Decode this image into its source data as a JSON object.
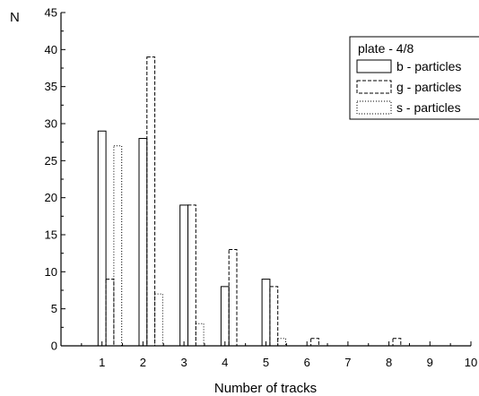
{
  "chart_data": {
    "type": "bar",
    "xlabel": "Number of tracks",
    "ylabel": "N",
    "xlim": [
      0,
      10
    ],
    "ylim": [
      0,
      45
    ],
    "x_ticks": [
      1,
      2,
      3,
      4,
      5,
      6,
      7,
      8,
      9,
      10
    ],
    "y_ticks": [
      0,
      5,
      10,
      15,
      20,
      25,
      30,
      35,
      40,
      45
    ],
    "grid": false,
    "legend": {
      "title": "plate - 4/8",
      "placement": "top-right"
    },
    "series": [
      {
        "name": "b - particles",
        "style": "solid",
        "color": "#000000",
        "points": [
          {
            "x": 1,
            "y": 29
          },
          {
            "x": 2,
            "y": 28
          },
          {
            "x": 3,
            "y": 19
          },
          {
            "x": 4,
            "y": 8
          },
          {
            "x": 5,
            "y": 9
          }
        ]
      },
      {
        "name": "g - particles",
        "style": "dashed",
        "color": "#000000",
        "points": [
          {
            "x": 1,
            "y": 9
          },
          {
            "x": 2,
            "y": 39
          },
          {
            "x": 3,
            "y": 19
          },
          {
            "x": 4,
            "y": 13
          },
          {
            "x": 5,
            "y": 8
          },
          {
            "x": 6,
            "y": 1
          },
          {
            "x": 8,
            "y": 1
          }
        ]
      },
      {
        "name": "s - particles",
        "style": "dotted",
        "color": "#000000",
        "points": [
          {
            "x": 1,
            "y": 27
          },
          {
            "x": 2,
            "y": 7
          },
          {
            "x": 3,
            "y": 3
          },
          {
            "x": 5,
            "y": 1
          }
        ]
      }
    ]
  }
}
